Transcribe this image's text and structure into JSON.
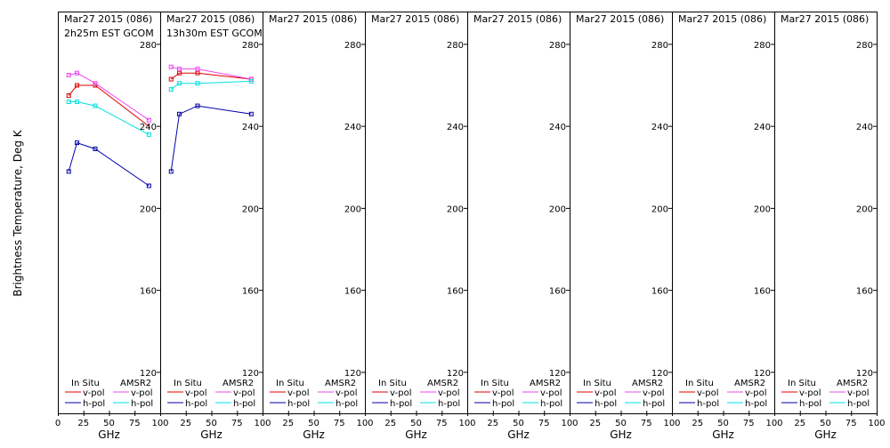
{
  "ylabel": "Brightness Temperature, Deg K",
  "xlabel": "GHz",
  "y_ticks": [
    "120",
    "160",
    "200",
    "240",
    "280"
  ],
  "x_ticks": [
    "0",
    "25",
    "50",
    "75",
    "100"
  ],
  "legend": {
    "in_situ": "In Situ",
    "amsr2": "AMSR2",
    "vpol": "v-pol",
    "hpol": "h-pol"
  },
  "colors": {
    "insitu_v": "#dd0000",
    "insitu_h": "#0000aa",
    "amsr2_v": "#ee44ee",
    "amsr2_h": "#00e0e0"
  },
  "panel_titles": [
    {
      "line1": "Mar27 2015 (086)",
      "line2": "2h25m EST GCOM"
    },
    {
      "line1": "Mar27 2015 (086)",
      "line2": "13h30m EST GCOM"
    },
    {
      "line1": "Mar27 2015 (086)",
      "line2": ""
    },
    {
      "line1": "Mar27 2015 (086)",
      "line2": ""
    },
    {
      "line1": "Mar27 2015 (086)",
      "line2": ""
    },
    {
      "line1": "Mar27 2015 (086)",
      "line2": ""
    },
    {
      "line1": "Mar27 2015 (086)",
      "line2": ""
    },
    {
      "line1": "Mar27 2015 (086)",
      "line2": ""
    }
  ],
  "chart_data": {
    "type": "line",
    "xlim": [
      0,
      100
    ],
    "ylim": [
      100,
      296
    ],
    "grid": false,
    "panels": [
      {
        "series": [
          {
            "name": "In Situ v-pol",
            "x": [
              10.65,
              18.7,
              36.5
            ],
            "y": [
              255,
              260,
              260
            ]
          },
          {
            "name": "In Situ h-pol",
            "x": [
              10.65,
              18.7,
              36.5,
              89
            ],
            "y": [
              218,
              232,
              229,
              211
            ]
          },
          {
            "name": "AMSR2 v-pol",
            "x": [
              10.65,
              18.7,
              36.5,
              89
            ],
            "y": [
              265,
              266,
              261,
              243
            ]
          },
          {
            "name": "AMSR2 h-pol",
            "x": [
              10.65,
              18.7,
              36.5,
              89
            ],
            "y": [
              252,
              252,
              250,
              236
            ]
          }
        ],
        "extra_segments": [
          {
            "series": "In Situ v-pol",
            "x": [
              36.5,
              89
            ],
            "y": [
              260,
              240
            ]
          }
        ]
      },
      {
        "series": [
          {
            "name": "In Situ v-pol",
            "x": [
              10.65,
              18.7,
              36.5,
              89
            ],
            "y": [
              263,
              266,
              266,
              263
            ]
          },
          {
            "name": "In Situ h-pol",
            "x": [
              10.65,
              18.7,
              36.5,
              89
            ],
            "y": [
              218,
              246,
              250,
              246
            ]
          },
          {
            "name": "AMSR2 v-pol",
            "x": [
              10.65,
              18.7,
              36.5,
              89
            ],
            "y": [
              269,
              268,
              268,
              263
            ]
          },
          {
            "name": "AMSR2 h-pol",
            "x": [
              10.65,
              18.7,
              36.5,
              89
            ],
            "y": [
              258,
              261,
              261,
              262
            ]
          }
        ],
        "extra_segments": []
      },
      {
        "series": [],
        "extra_segments": []
      },
      {
        "series": [],
        "extra_segments": []
      },
      {
        "series": [],
        "extra_segments": []
      },
      {
        "series": [],
        "extra_segments": []
      },
      {
        "series": [],
        "extra_segments": []
      },
      {
        "series": [],
        "extra_segments": []
      }
    ]
  }
}
